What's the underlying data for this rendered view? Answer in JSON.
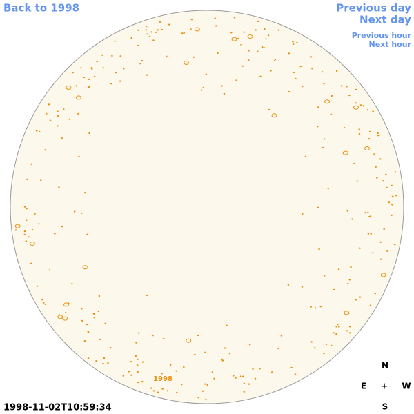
{
  "navigation": {
    "back": "Back to 1998",
    "previous_day": "Previous day",
    "next_day": "Next day",
    "previous_hour": "Previous hour",
    "next_hour": "Next hour"
  },
  "timestamp": "1998-11-02T10:59:34",
  "year_link": "1998",
  "compass": {
    "north": "N",
    "east": "E",
    "center": "+",
    "west": "W",
    "south": "S"
  }
}
